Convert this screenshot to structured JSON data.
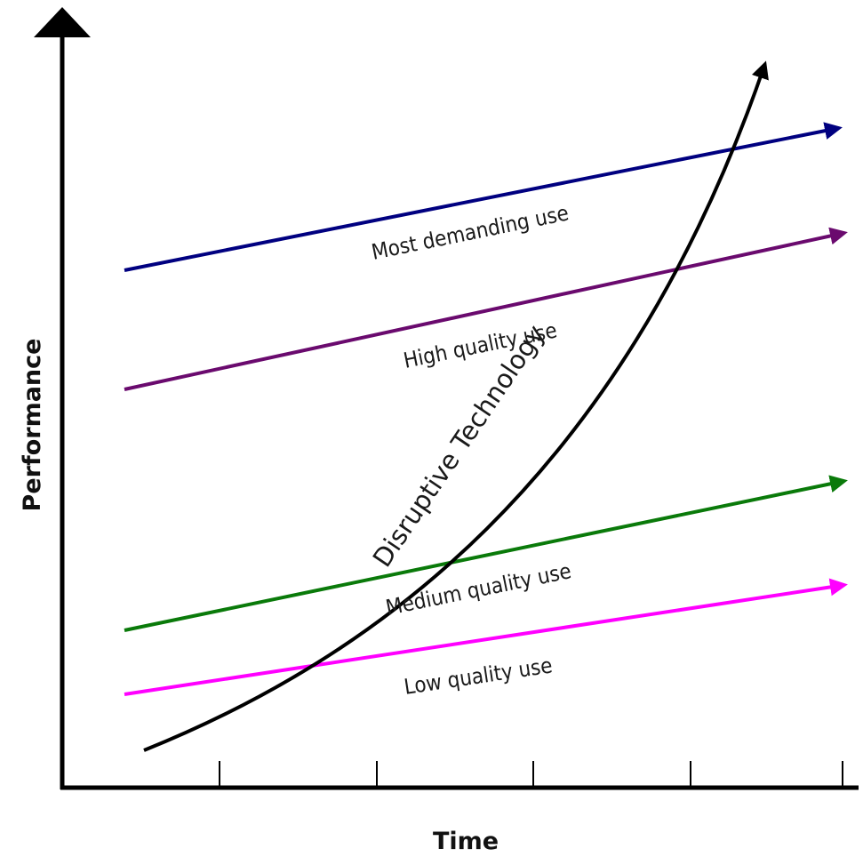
{
  "axes": {
    "x_label": "Time",
    "y_label": "Performance"
  },
  "trajectories": [
    {
      "id": "most-demanding",
      "label": "Most demanding use",
      "color": "#000080"
    },
    {
      "id": "high-quality",
      "label": "High quality use",
      "color": "#6a0a6e"
    },
    {
      "id": "medium-quality",
      "label": "Medium quality use",
      "color": "#0a7a0a"
    },
    {
      "id": "low-quality",
      "label": "Low quality use",
      "color": "#ff00ff"
    }
  ],
  "disruptive": {
    "label": "Disruptive Technology",
    "color": "#000000"
  },
  "colors": {
    "axis": "#000000"
  }
}
